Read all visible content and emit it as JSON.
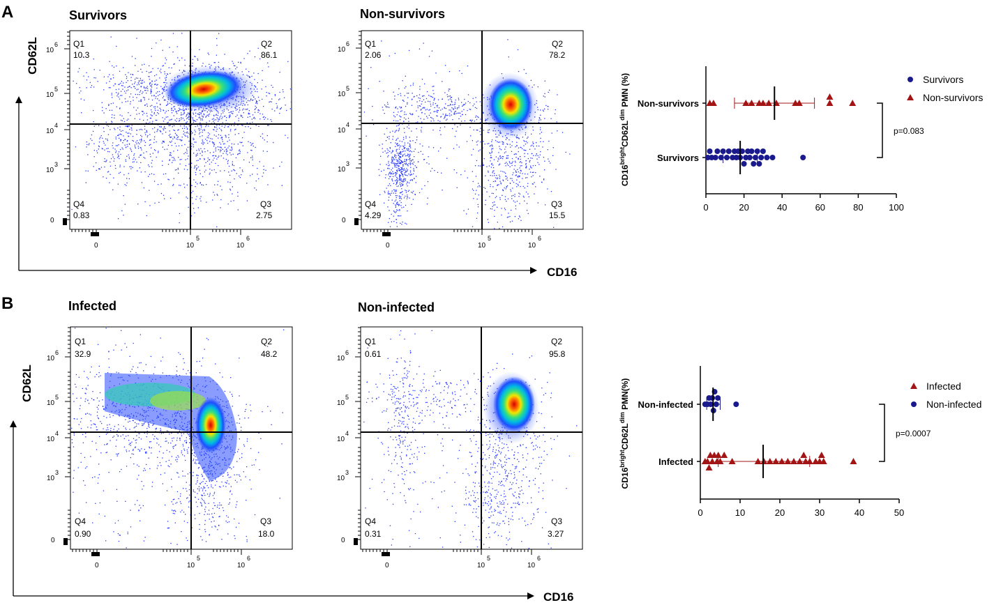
{
  "panels": {
    "A": {
      "letter": "A",
      "y_axis_label": "CD62L",
      "x_axis_label": "CD16",
      "flow_plots": [
        {
          "title": "Survivors",
          "quadrants": {
            "Q1": "10.3",
            "Q2": "86.1",
            "Q3": "2.75",
            "Q4": "0.83"
          }
        },
        {
          "title": "Non-survivors",
          "quadrants": {
            "Q1": "2.06",
            "Q2": "78.2",
            "Q3": "15.5",
            "Q4": "4.29"
          }
        }
      ]
    },
    "B": {
      "letter": "B",
      "y_axis_label": "CD62L",
      "x_axis_label": "CD16",
      "flow_plots": [
        {
          "title": "Infected",
          "quadrants": {
            "Q1": "32.9",
            "Q2": "48.2",
            "Q3": "18.0",
            "Q4": "0.90"
          }
        },
        {
          "title": "Non-infected",
          "quadrants": {
            "Q1": "0.61",
            "Q2": "95.8",
            "Q3": "3.27",
            "Q4": "0.31"
          }
        }
      ]
    }
  },
  "flow_axis": {
    "y_ticks": [
      {
        "base": "0",
        "exp": ""
      },
      {
        "base": "10",
        "exp": "3"
      },
      {
        "base": "10",
        "exp": "4"
      },
      {
        "base": "10",
        "exp": "5"
      },
      {
        "base": "10",
        "exp": "6"
      }
    ],
    "x_ticks": [
      {
        "base": "0",
        "exp": ""
      },
      {
        "base": "10",
        "exp": "5"
      },
      {
        "base": "10",
        "exp": "6"
      }
    ]
  },
  "colors": {
    "survivors": "#1a1a8c",
    "non_survivors": "#a31515",
    "density_low": "#1a1aff",
    "density_high": "#ff1a00"
  },
  "chart_data": [
    {
      "type": "scatter",
      "panel": "A",
      "ylabel": "CD16brightCD62Ldim PMN (%)",
      "ylabel_parts": {
        "main1": "CD16",
        "sup1": "bright",
        "main2": "CD62L",
        "sup2": "dim",
        "main3": " PMN (%)"
      },
      "categories": [
        "Non-survivors",
        "Survivors"
      ],
      "xlim": [
        0,
        100
      ],
      "xticks": [
        "0",
        "20",
        "40",
        "60",
        "80",
        "100"
      ],
      "p_value": "p=0.083",
      "legend": [
        {
          "name": "Survivors",
          "marker": "circle",
          "color": "#1a1a8c"
        },
        {
          "name": "Non-survivors",
          "marker": "triangle",
          "color": "#a31515"
        }
      ],
      "series": [
        {
          "name": "Non-survivors",
          "marker": "triangle",
          "color": "#a31515",
          "values": [
            2,
            4,
            21,
            30,
            47,
            65,
            77,
            24,
            28,
            33,
            49,
            65,
            37
          ],
          "mean": 36,
          "sd_low": 15,
          "sd_high": 57
        },
        {
          "name": "Survivors",
          "marker": "circle",
          "color": "#1a1a8c",
          "values": [
            1,
            2,
            3,
            5,
            6,
            8,
            9,
            11,
            12,
            14,
            15,
            16,
            17,
            18,
            19,
            20,
            21,
            22,
            23,
            24,
            25,
            26,
            27,
            28,
            29,
            30,
            32,
            35,
            51
          ],
          "mean": 18,
          "sd_low": 9,
          "sd_high": 27
        }
      ]
    },
    {
      "type": "scatter",
      "panel": "B",
      "ylabel": "CD16brightCD62Ldim PMN(%)",
      "ylabel_parts": {
        "main1": "CD16",
        "sup1": "bright",
        "main2": "CD62L",
        "sup2": "dim",
        "main3": " PMN(%)"
      },
      "categories": [
        "Non-infected",
        "Infected"
      ],
      "xlim": [
        0,
        50
      ],
      "xticks": [
        "0",
        "10",
        "20",
        "30",
        "40",
        "50"
      ],
      "p_value": "p=0.0007",
      "legend": [
        {
          "name": "Infected",
          "marker": "triangle",
          "color": "#a31515"
        },
        {
          "name": "Non-infected",
          "marker": "circle",
          "color": "#1a1a8c"
        }
      ],
      "series": [
        {
          "name": "Non-infected",
          "marker": "circle",
          "color": "#1a1a8c",
          "values": [
            1.2,
            1.8,
            2.2,
            2.6,
            3.0,
            3.3,
            3.6,
            4.0,
            4.4,
            9.0
          ],
          "mean": 3.2,
          "sd_low": 1.6,
          "sd_high": 5.0
        },
        {
          "name": "Infected",
          "marker": "triangle",
          "color": "#a31515",
          "values": [
            1.2,
            1.8,
            2.5,
            3.0,
            3.5,
            4.2,
            5.0,
            6.0,
            8.0,
            14.5,
            16.0,
            17.5,
            19.0,
            20.5,
            22.0,
            23.5,
            25.0,
            26.5,
            27.5,
            29.0,
            30.0,
            30.5,
            31.0,
            38.5,
            2.2,
            4.5,
            26.0
          ],
          "mean": 15.8,
          "sd_low": 4.5,
          "sd_high": 27.5
        }
      ]
    }
  ]
}
